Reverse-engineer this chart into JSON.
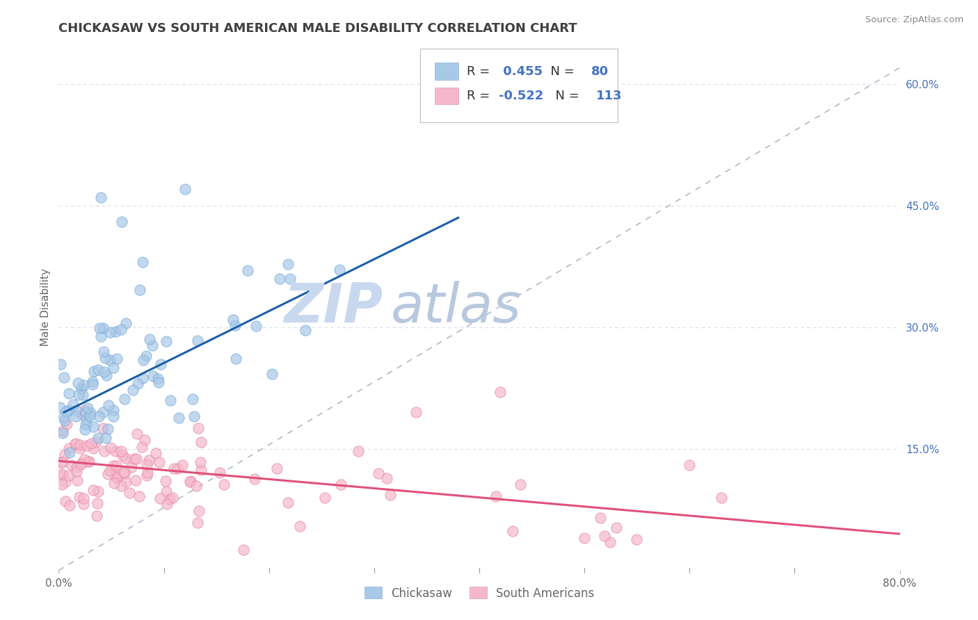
{
  "title": "CHICKASAW VS SOUTH AMERICAN MALE DISABILITY CORRELATION CHART",
  "source": "Source: ZipAtlas.com",
  "ylabel": "Male Disability",
  "xlim": [
    0.0,
    0.8
  ],
  "ylim": [
    0.0,
    0.65
  ],
  "xtick_positions": [
    0.0,
    0.8
  ],
  "xticklabels": [
    "0.0%",
    "80.0%"
  ],
  "yticks_right": [
    0.15,
    0.3,
    0.45,
    0.6
  ],
  "ytick_right_labels": [
    "15.0%",
    "30.0%",
    "45.0%",
    "60.0%"
  ],
  "chickasaw_dot_color": "#a8c8e8",
  "chickasaw_dot_edge": "#7aadda",
  "south_american_dot_color": "#f5b8cb",
  "south_american_dot_edge": "#e88aa8",
  "chickasaw_line_color": "#1a5fa8",
  "south_american_line_color": "#e0507a",
  "reference_line_color": "#b0b8c8",
  "grid_color": "#d8dde8",
  "R_chickasaw": 0.455,
  "N_chickasaw": 80,
  "R_south_american": -0.522,
  "N_south_american": 113,
  "title_color": "#404040",
  "title_fontsize": 13,
  "source_color": "#888888",
  "watermark_zip_color": "#c8d8ee",
  "watermark_atlas_color": "#b8c8de",
  "legend_patch_blue": "#a8c8e8",
  "legend_patch_pink": "#f5b8cb",
  "legend_text_color": "#333333",
  "legend_value_color": "#4472c4",
  "bottom_legend_color": "#666666",
  "ch_line_start_x": 0.005,
  "ch_line_end_x": 0.38,
  "ch_line_start_y": 0.195,
  "ch_line_end_y": 0.435,
  "sa_line_start_x": 0.0,
  "sa_line_end_x": 0.8,
  "sa_line_start_y": 0.135,
  "sa_line_end_y": 0.045
}
